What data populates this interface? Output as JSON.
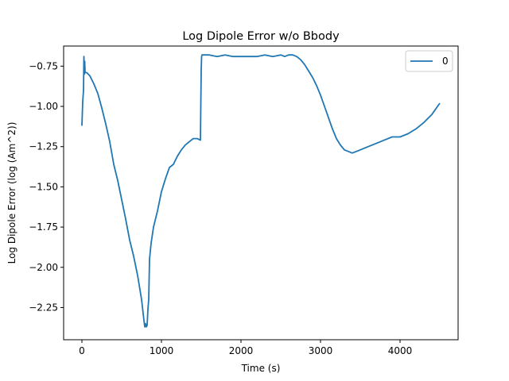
{
  "chart_data": {
    "type": "line",
    "title": "Log Dipole Error w/o Bbody",
    "xlabel": "Time (s)",
    "ylabel": "Log Dipole Error (log (Am^2))",
    "xlim": [
      -230,
      4730
    ],
    "ylim": [
      -2.45,
      -0.625
    ],
    "xticks": [
      0,
      1000,
      2000,
      3000,
      4000
    ],
    "xtick_labels": [
      "0",
      "1000",
      "2000",
      "3000",
      "4000"
    ],
    "yticks": [
      -2.25,
      -2.0,
      -1.75,
      -1.5,
      -1.25,
      -1.0,
      -0.75
    ],
    "ytick_labels": [
      "−2.25",
      "−2.00",
      "−1.75",
      "−1.50",
      "−1.25",
      "−1.00",
      "−0.75"
    ],
    "grid": false,
    "legend": "top-right",
    "series": [
      {
        "name": "0",
        "color": "#1f77b4",
        "x": [
          0,
          10,
          20,
          25,
          30,
          35,
          40,
          60,
          100,
          150,
          200,
          250,
          300,
          350,
          400,
          450,
          500,
          550,
          600,
          650,
          700,
          750,
          780,
          790,
          800,
          810,
          820,
          830,
          840,
          850,
          870,
          900,
          950,
          1000,
          1050,
          1100,
          1150,
          1200,
          1250,
          1300,
          1350,
          1400,
          1450,
          1490,
          1500,
          1505,
          1510,
          1515,
          1520,
          1550,
          1600,
          1700,
          1800,
          1900,
          2000,
          2100,
          2200,
          2300,
          2400,
          2500,
          2550,
          2600,
          2650,
          2700,
          2750,
          2800,
          2850,
          2900,
          2950,
          3000,
          3050,
          3100,
          3150,
          3200,
          3250,
          3300,
          3350,
          3400,
          3450,
          3500,
          3600,
          3700,
          3800,
          3900,
          4000,
          4100,
          4200,
          4300,
          4400,
          4500
        ],
        "y": [
          -1.12,
          -0.97,
          -0.9,
          -0.69,
          -0.8,
          -0.72,
          -0.79,
          -0.79,
          -0.81,
          -0.86,
          -0.92,
          -1.01,
          -1.11,
          -1.22,
          -1.36,
          -1.46,
          -1.58,
          -1.7,
          -1.83,
          -1.93,
          -2.05,
          -2.2,
          -2.33,
          -2.37,
          -2.35,
          -2.37,
          -2.36,
          -2.26,
          -2.2,
          -1.95,
          -1.85,
          -1.75,
          -1.65,
          -1.53,
          -1.45,
          -1.38,
          -1.36,
          -1.31,
          -1.27,
          -1.24,
          -1.22,
          -1.2,
          -1.2,
          -1.21,
          -0.77,
          -0.69,
          -0.68,
          -0.68,
          -0.68,
          -0.68,
          -0.68,
          -0.69,
          -0.68,
          -0.69,
          -0.69,
          -0.69,
          -0.69,
          -0.68,
          -0.69,
          -0.68,
          -0.69,
          -0.68,
          -0.68,
          -0.69,
          -0.71,
          -0.74,
          -0.78,
          -0.82,
          -0.87,
          -0.93,
          -1.0,
          -1.07,
          -1.14,
          -1.2,
          -1.24,
          -1.27,
          -1.28,
          -1.29,
          -1.28,
          -1.27,
          -1.25,
          -1.23,
          -1.21,
          -1.19,
          -1.19,
          -1.17,
          -1.14,
          -1.1,
          -1.05,
          -0.98
        ]
      }
    ]
  }
}
